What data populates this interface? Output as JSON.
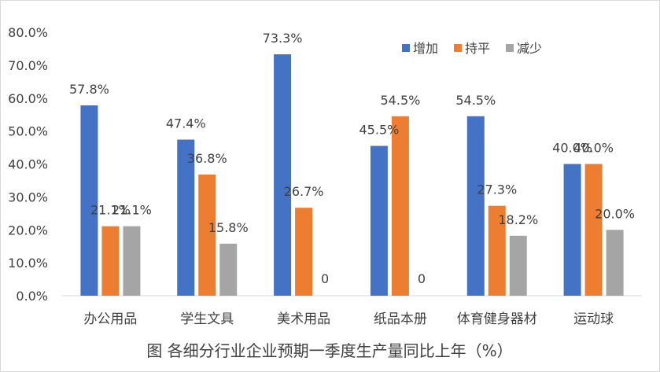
{
  "chart_data": {
    "type": "bar",
    "title": "图 各细分行业企业预期一季度生产量同比上年（%）",
    "categories": [
      "办公用品",
      "学生文具",
      "美术用品",
      "纸品本册",
      "体育健身器材",
      "运动球"
    ],
    "series": [
      {
        "name": "增加",
        "color": "#4472C4",
        "values": [
          57.8,
          47.4,
          73.3,
          45.5,
          54.5,
          40.0
        ],
        "labels": [
          "57.8%",
          "47.4%",
          "73.3%",
          "45.5%",
          "54.5%",
          "40.0%"
        ]
      },
      {
        "name": "持平",
        "color": "#ED7D31",
        "values": [
          21.1,
          36.8,
          26.7,
          54.5,
          27.3,
          40.0
        ],
        "labels": [
          "21.1%",
          "36.8%",
          "26.7%",
          "54.5%",
          "27.3%",
          "40.0%"
        ]
      },
      {
        "name": "减少",
        "color": "#A5A5A5",
        "values": [
          21.1,
          15.8,
          0,
          0,
          18.2,
          20.0
        ],
        "labels": [
          "21.1%",
          "15.8%",
          "0",
          "0",
          "18.2%",
          "20.0%"
        ]
      }
    ],
    "ylim": [
      0,
      80
    ],
    "yticks": [
      "0.0%",
      "10.0%",
      "20.0%",
      "30.0%",
      "40.0%",
      "50.0%",
      "60.0%",
      "70.0%",
      "80.0%"
    ],
    "grid": false,
    "legend_position": "top-right"
  }
}
